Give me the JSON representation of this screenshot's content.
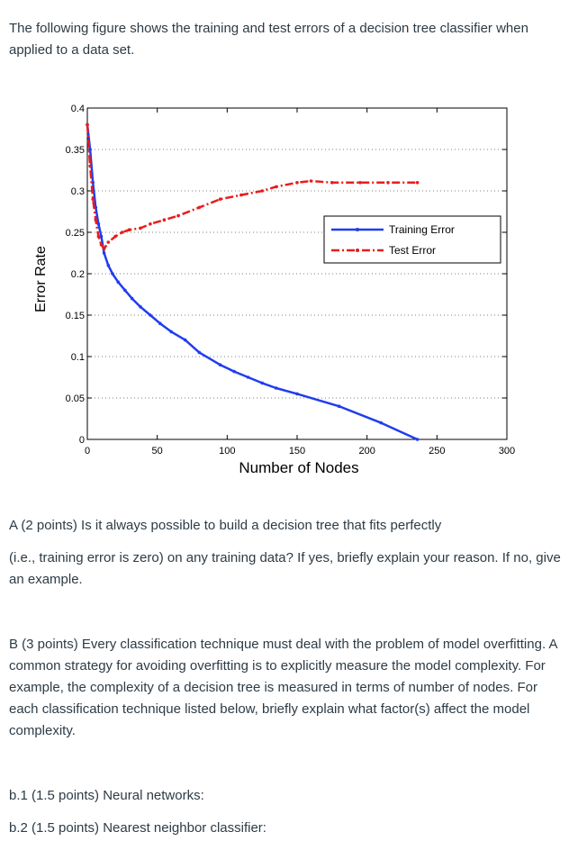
{
  "intro": "The following figure shows the training and test errors of a decision tree classifier when applied to a data set.",
  "question_a_line1": "A (2 points) Is it always possible to build a decision tree that fits perfectly",
  "question_a_line2": "(i.e., training error is zero) on any training data? If yes, briefly explain your reason. If no, give an example.",
  "question_b": "B (3 points) Every classification technique must deal with the problem of model overfitting. A common strategy for avoiding overfitting is to explicitly measure the model complexity. For example, the complexity of a decision tree is measured in terms of number of nodes. For each classification technique listed below, briefly explain what factor(s) affect the model complexity.",
  "question_b1": "b.1 (1.5 points) Neural networks:",
  "question_b2": "b.2 (1.5 points) Nearest neighbor classifier:",
  "chart_data": {
    "type": "line",
    "title": "",
    "xlabel": "Number of Nodes",
    "ylabel": "Error Rate",
    "xlim": [
      0,
      300
    ],
    "ylim": [
      0,
      0.4
    ],
    "x_ticks": [
      "0",
      "50",
      "100",
      "150",
      "200",
      "250",
      "300"
    ],
    "y_ticks": [
      "0",
      "0.05",
      "0.1",
      "0.15",
      "0.2",
      "0.25",
      "0.3",
      "0.35",
      "0.4"
    ],
    "grid": "horizontal dotted",
    "legend_position": "right",
    "series": [
      {
        "name": "Training Error",
        "color": "#1f3df0",
        "style": "solid",
        "x": [
          0,
          2,
          4,
          6,
          8,
          10,
          12,
          15,
          18,
          22,
          27,
          32,
          38,
          45,
          52,
          60,
          70,
          80,
          95,
          105,
          115,
          125,
          135,
          150,
          180,
          210,
          236
        ],
        "y": [
          0.38,
          0.35,
          0.31,
          0.28,
          0.26,
          0.245,
          0.225,
          0.21,
          0.2,
          0.19,
          0.18,
          0.17,
          0.16,
          0.15,
          0.14,
          0.13,
          0.12,
          0.105,
          0.09,
          0.082,
          0.075,
          0.068,
          0.062,
          0.055,
          0.04,
          0.02,
          0.0
        ]
      },
      {
        "name": "Test Error",
        "color": "#e81c1c",
        "style": "dashdot",
        "x": [
          0,
          2,
          4,
          6,
          8,
          10,
          12,
          15,
          20,
          25,
          30,
          38,
          45,
          55,
          65,
          80,
          95,
          110,
          125,
          135,
          150,
          160,
          175,
          195,
          215,
          236
        ],
        "y": [
          0.38,
          0.33,
          0.29,
          0.265,
          0.245,
          0.235,
          0.23,
          0.238,
          0.245,
          0.25,
          0.253,
          0.255,
          0.26,
          0.265,
          0.27,
          0.28,
          0.29,
          0.295,
          0.3,
          0.305,
          0.31,
          0.312,
          0.31,
          0.31,
          0.31,
          0.31
        ]
      }
    ]
  }
}
